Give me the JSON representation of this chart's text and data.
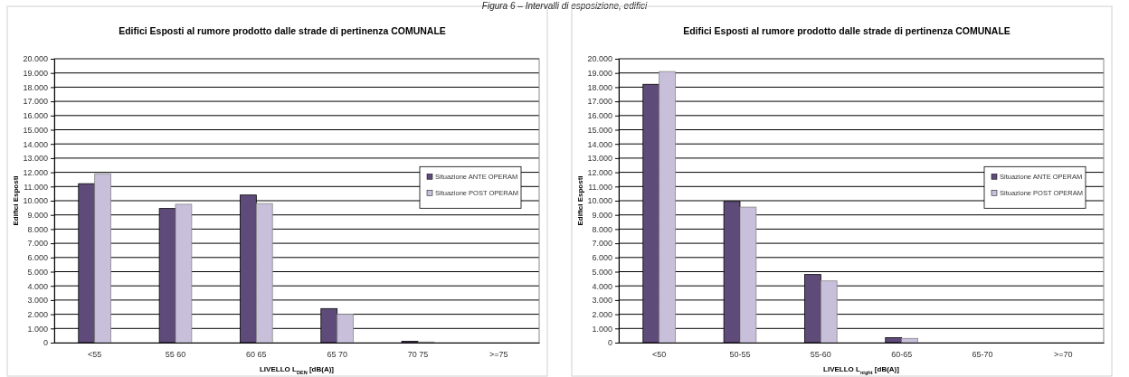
{
  "chart_data": [
    {
      "type": "bar",
      "title": "Edifici Esposti al rumore prodotto dalle strade di pertinenza COMUNALE",
      "annotations": [
        "Figura 6 – Intervalli di esposizione, edifici"
      ],
      "xlabel": "LIVELLO L$_{DEN}$ [dB(A)]",
      "ylabel": "Edifici Esposti",
      "categories": [
        "<55",
        "55 60",
        "60 65",
        "65 70",
        "70 75",
        ">=75"
      ],
      "series": [
        {
          "name": "Situazione ANTE OPERAM",
          "color": "#5f4b7a",
          "values": [
            11200,
            9450,
            10400,
            2400,
            100,
            0
          ]
        },
        {
          "name": "Situazione POST OPERAM",
          "color": "#c8bfda",
          "values": [
            11900,
            9750,
            9800,
            2000,
            50,
            0
          ]
        }
      ],
      "ylim": [
        0,
        20000
      ],
      "yticks": [
        0,
        {
          "value": 1000,
          "label": "1.000"
        },
        {
          "value": 2000,
          "label": "2.000"
        },
        {
          "value": 3000,
          "label": "3.000"
        },
        {
          "value": 4000,
          "label": "4.000"
        },
        {
          "value": 5000,
          "label": "5.000"
        },
        {
          "value": 6000,
          "label": "6.000"
        },
        {
          "value": 7000,
          "label": "7.000"
        },
        {
          "value": 8000,
          "label": "8.000"
        },
        {
          "value": 9000,
          "label": "9.000"
        },
        {
          "value": 10000,
          "label": "10.000"
        },
        {
          "value": 11000,
          "label": "11.000"
        },
        {
          "value": 12000,
          "label": "12.000"
        },
        {
          "value": 13000,
          "label": "13.000"
        },
        {
          "value": 14000,
          "label": "14.000"
        },
        {
          "value": 15000,
          "label": "15.000"
        },
        {
          "value": 16000,
          "label": "16.000"
        },
        {
          "value": 17000,
          "label": "17.000"
        },
        {
          "value": 18000,
          "label": "18.000"
        },
        {
          "value": 19000,
          "label": "19.000"
        },
        {
          "value": 20000,
          "label": "20.000"
        }
      ],
      "grid": "y",
      "legend": "right"
    },
    {
      "type": "bar",
      "title": "Edifici Esposti al rumore prodotto dalle strade di pertinenza COMUNALE",
      "xlabel": "LIVELLO L$_{night}$ [dB(A)]",
      "ylabel": "Edifici Esposti",
      "categories": [
        "<50",
        "50-55",
        "55-60",
        "60-65",
        "65-70",
        ">=70"
      ],
      "series": [
        {
          "name": "Situazione ANTE OPERAM",
          "color": "#5f4b7a",
          "values": [
            18200,
            9950,
            4800,
            350,
            0,
            0
          ]
        },
        {
          "name": "Situazione POST OPERAM",
          "color": "#c8bfda",
          "values": [
            19100,
            9550,
            4350,
            300,
            0,
            0
          ]
        }
      ],
      "ylim": [
        0,
        20000
      ],
      "yticks": [
        0,
        {
          "value": 1000,
          "label": "1.000"
        },
        {
          "value": 2000,
          "label": "2.000"
        },
        {
          "value": 3000,
          "label": "3.000"
        },
        {
          "value": 4000,
          "label": "4.000"
        },
        {
          "value": 5000,
          "label": "5.000"
        },
        {
          "value": 6000,
          "label": "6.000"
        },
        {
          "value": 7000,
          "label": "7.000"
        },
        {
          "value": 8000,
          "label": "8.000"
        },
        {
          "value": 9000,
          "label": "9.000"
        },
        {
          "value": 10000,
          "label": "10.000"
        },
        {
          "value": 11000,
          "label": "11.000"
        },
        {
          "value": 12000,
          "label": "12.000"
        },
        {
          "value": 13000,
          "label": "13.000"
        },
        {
          "value": 14000,
          "label": "14.000"
        },
        {
          "value": 15000,
          "label": "15.000"
        },
        {
          "value": 16000,
          "label": "16.000"
        },
        {
          "value": 17000,
          "label": "17.000"
        },
        {
          "value": 18000,
          "label": "18.000"
        },
        {
          "value": 19000,
          "label": "19.000"
        },
        {
          "value": 20000,
          "label": "20.000"
        }
      ],
      "grid": "y",
      "legend": "right"
    }
  ]
}
